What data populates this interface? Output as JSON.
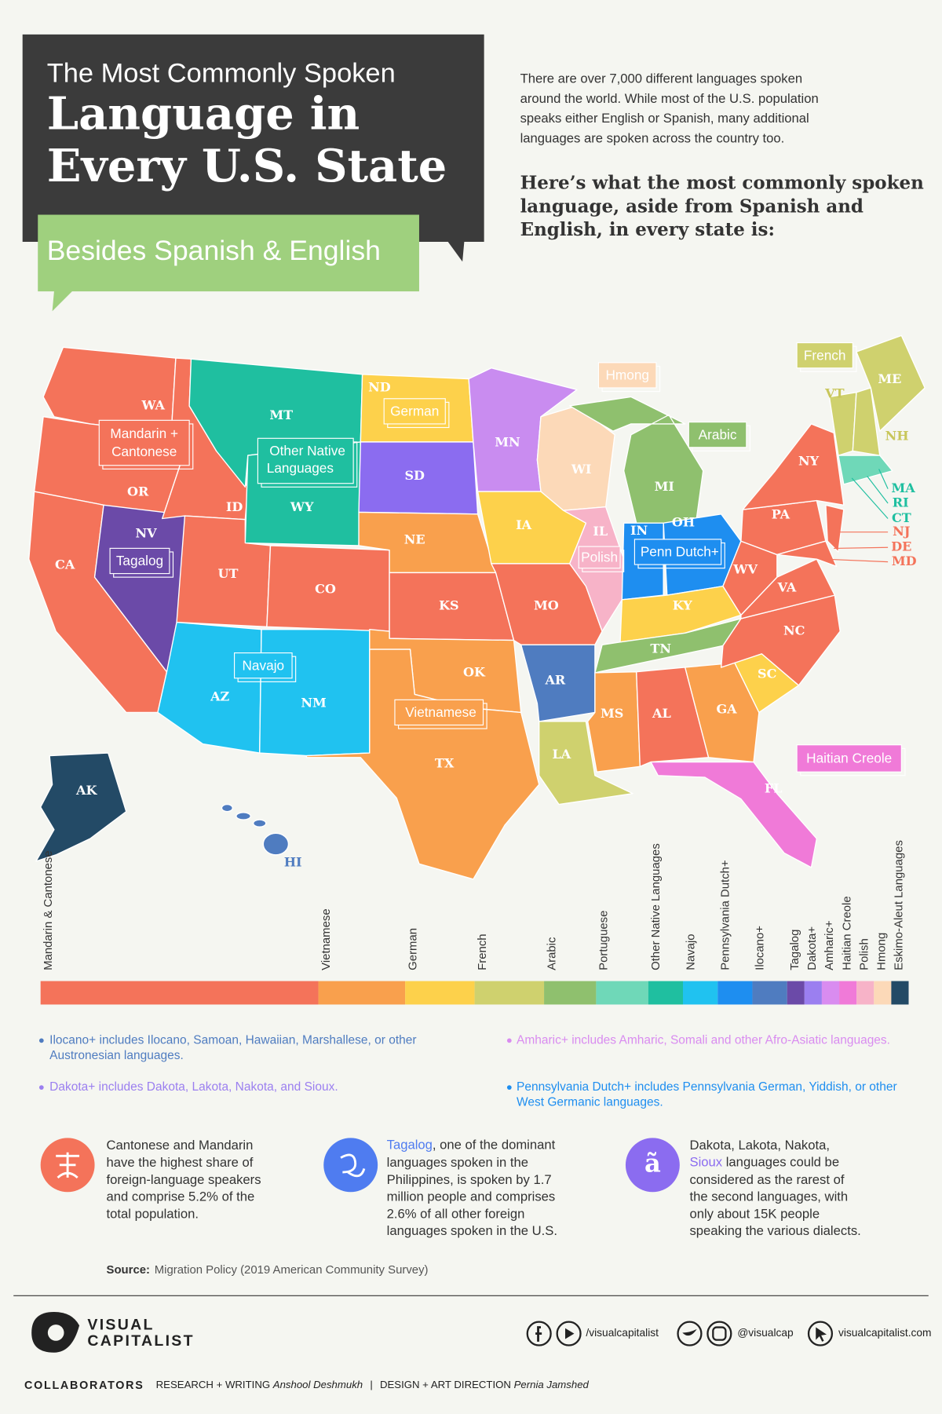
{
  "header": {
    "title_line1": "The Most Commonly Spoken",
    "title_line2": "Language in",
    "title_line3": "Every U.S. State",
    "subtitle": "Besides Spanish & English"
  },
  "intro": {
    "lines": [
      "There are over 7,000 different languages spoken",
      "around the world. While most of the U.S. population",
      "speaks either English or Spanish, many additional",
      "languages are spoken across the country too."
    ],
    "lead_lines": [
      "Here’s what the most commonly spoken",
      "language, aside from Spanish and",
      "English, in every state is:"
    ]
  },
  "map": {
    "states": [
      "WA",
      "OR",
      "CA",
      "NV",
      "ID",
      "MT",
      "WY",
      "UT",
      "AZ",
      "NM",
      "CO",
      "ND",
      "SD",
      "NE",
      "KS",
      "OK",
      "TX",
      "MN",
      "IA",
      "MO",
      "AR",
      "LA",
      "WI",
      "IL",
      "MI",
      "IN",
      "OH",
      "KY",
      "TN",
      "MS",
      "AL",
      "GA",
      "FL",
      "SC",
      "NC",
      "VA",
      "WV",
      "PA",
      "NY",
      "NJ",
      "DE",
      "MD",
      "MA",
      "RI",
      "CT",
      "VT",
      "NH",
      "ME",
      "AK",
      "HI"
    ],
    "language_labels": [
      [
        "Mandarin +",
        "Cantonese"
      ],
      [
        "Other Native",
        "Languages"
      ],
      [
        "German"
      ],
      [
        "Hmong"
      ],
      [
        "French"
      ],
      [
        "Arabic"
      ],
      [
        "Tagalog"
      ],
      [
        "Polish"
      ],
      [
        "Penn Dutch+"
      ],
      [
        "Navajo"
      ],
      [
        "Vietnamese"
      ],
      [
        "Haitian Creole"
      ]
    ]
  },
  "chart_data": {
    "type": "bar",
    "categories": [
      "Mandarin & Cantonese",
      "Vietnamese",
      "German",
      "French",
      "Arabic",
      "Portuguese",
      "Other Native Languages",
      "Navajo",
      "Pennsylvania Dutch+",
      "Ilocano+",
      "Tagalog",
      "Dakota+",
      "Amharic+",
      "Haitian Creole",
      "Polish",
      "Hmong",
      "Eskimo-Aleut Languages"
    ],
    "values": [
      16,
      5,
      4,
      4,
      3,
      3,
      2,
      2,
      2,
      2,
      1,
      1,
      1,
      1,
      1,
      1,
      1
    ],
    "colors": [
      "#f4735a",
      "#f9a04d",
      "#fdd14b",
      "#cfd16e",
      "#8fc06e",
      "#6fd8b8",
      "#1fbfa0",
      "#20c2f0",
      "#1e8ef0",
      "#4f7cc0",
      "#6b4aa8",
      "#9b7ff0",
      "#d98cf0",
      "#f07ad8",
      "#f7b3c8",
      "#fcd9b8",
      "#234a66"
    ],
    "xlim": [
      0,
      50
    ]
  },
  "notes": [
    {
      "lines": [
        "Ilocano+ includes Ilocano, Samoan, Hawaiian, Marshallese, or other",
        "Austronesian languages."
      ],
      "color": "#4f7cc0"
    },
    {
      "lines": [
        "Amharic+ includes Amharic, Somali and other Afro-Asiatic languages."
      ],
      "color": "#d98cf0"
    },
    {
      "lines": [
        "Dakota+ includes Dakota, Lakota, Nakota, and Sioux."
      ],
      "color": "#9b7ff0"
    },
    {
      "lines": [
        "Pennsylvania Dutch+ includes Pennsylvania German, Yiddish, or other",
        "West Germanic languages."
      ],
      "color": "#1e8ef0"
    }
  ],
  "facts": [
    {
      "highlight": [
        "Cantonese and Mandarin"
      ],
      "rest": "",
      "lines": [
        "have the highest share of",
        "foreign-language speakers",
        "and comprise 5.2% of the",
        "total population."
      ]
    },
    {
      "highlight": [
        "Tagalog"
      ],
      "rest": ", one of the dominant",
      "lines": [
        "languages spoken in the",
        "Philippines, is spoken by 1.7",
        "million people and comprises",
        "2.6% of all other foreign",
        "languages spoken in the U.S."
      ]
    },
    {
      "highlight": [
        "Dakota, Lakota, Nakota,",
        "Sioux"
      ],
      "rest": " languages could be",
      "lines": [
        "considered as the rarest of",
        "the second languages, with",
        "only about 15K people",
        "speaking the various dialects."
      ],
      "icon": "ã"
    }
  ],
  "source": {
    "label": "Source:",
    "text": "Migration Policy (2019 American Community Survey)"
  },
  "footer": {
    "logo": [
      "VISUAL",
      "CAPITALIST"
    ],
    "social": [
      "/visualcapitalist",
      "@visualcap",
      "visualcapitalist.com"
    ],
    "collaborators": "COLLABORATORS",
    "credits": [
      "RESEARCH + WRITING",
      "Anshool Deshmukh",
      "|",
      "DESIGN + ART DIRECTION",
      "Pernia Jamshed"
    ]
  }
}
